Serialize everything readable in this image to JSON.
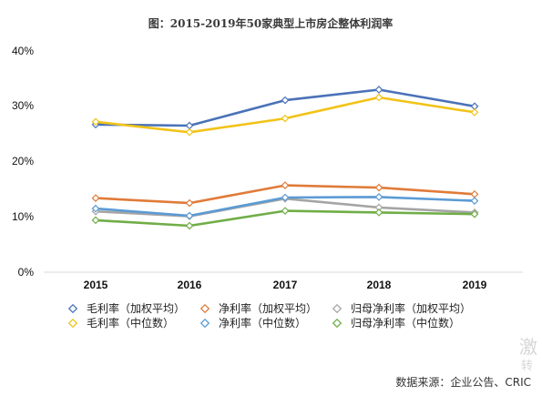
{
  "chart_data": {
    "type": "line",
    "title": "图：2015-2019年50家典型上市房企整体利润率",
    "categories": [
      "2015",
      "2016",
      "2017",
      "2018",
      "2019"
    ],
    "ylim": [
      0,
      40
    ],
    "yticks": [
      "0%",
      "10%",
      "20%",
      "30%",
      "40%"
    ],
    "grid": false,
    "legend_position": "bottom",
    "series": [
      {
        "name": "毛利率（加权平均）",
        "color": "#4a72b8",
        "values": [
          26.7,
          26.5,
          31.1,
          33.0,
          30.0
        ]
      },
      {
        "name": "净利率（加权平均）",
        "color": "#e07b39",
        "values": [
          13.4,
          12.5,
          15.7,
          15.3,
          14.1
        ]
      },
      {
        "name": "归母净利率（加权平均）",
        "color": "#a5a5a5",
        "values": [
          11.0,
          10.1,
          13.3,
          11.7,
          10.8
        ]
      },
      {
        "name": "毛利率（中位数）",
        "color": "#f2c318",
        "values": [
          27.2,
          25.3,
          27.8,
          31.6,
          28.9
        ]
      },
      {
        "name": "净利率（中位数）",
        "color": "#5b9bd5",
        "values": [
          11.5,
          10.2,
          13.5,
          13.6,
          12.9
        ]
      },
      {
        "name": "归母净利率（中位数）",
        "color": "#70ad47",
        "values": [
          9.4,
          8.4,
          11.1,
          10.8,
          10.5
        ]
      }
    ]
  },
  "source": "数据来源：企业公告、CRIC",
  "watermark": {
    "line1": "激",
    "line2": "转"
  }
}
